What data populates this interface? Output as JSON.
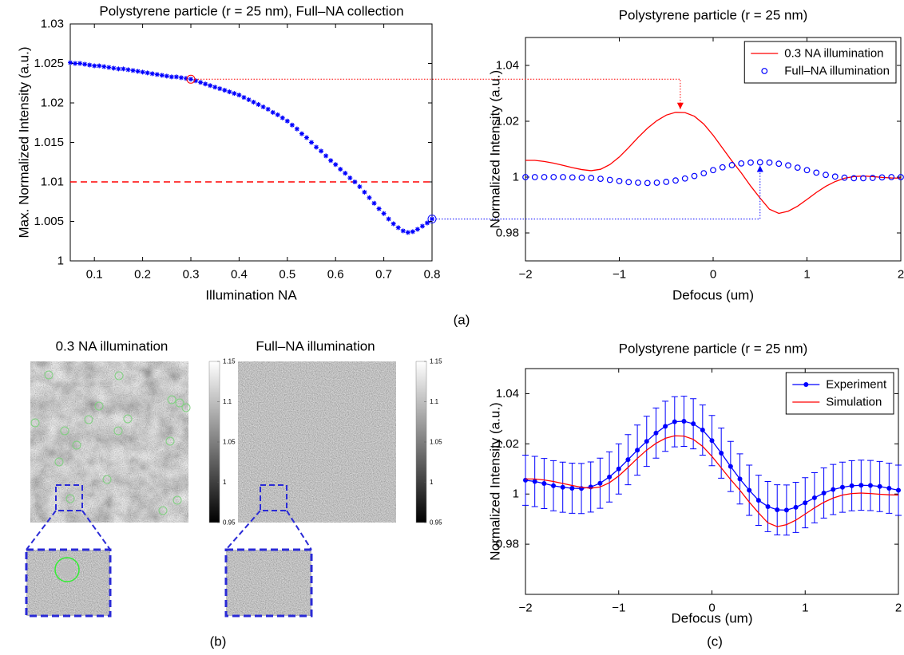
{
  "chart_data": [
    {
      "type": "scatter",
      "title": "Polystyrene particle (r = 25 nm), Full–NA collection",
      "x_label": "Illumination NA",
      "y_label": "Max. Normalized Intensity (a.u.)",
      "xlim": [
        0.05,
        0.8
      ],
      "ylim": [
        1,
        1.03
      ],
      "xticks": [
        0.1,
        0.2,
        0.3,
        0.4,
        0.5,
        0.6,
        0.7,
        0.8
      ],
      "yticks": [
        1,
        1.005,
        1.01,
        1.015,
        1.02,
        1.025,
        1.03
      ],
      "x": [
        0.05,
        0.06,
        0.07,
        0.08,
        0.09,
        0.1,
        0.11,
        0.12,
        0.13,
        0.14,
        0.15,
        0.16,
        0.17,
        0.18,
        0.19,
        0.2,
        0.21,
        0.22,
        0.23,
        0.24,
        0.25,
        0.26,
        0.27,
        0.28,
        0.29,
        0.3,
        0.31,
        0.32,
        0.33,
        0.34,
        0.35,
        0.36,
        0.37,
        0.38,
        0.39,
        0.4,
        0.41,
        0.42,
        0.43,
        0.44,
        0.45,
        0.46,
        0.47,
        0.48,
        0.49,
        0.5,
        0.51,
        0.52,
        0.53,
        0.54,
        0.55,
        0.56,
        0.57,
        0.58,
        0.59,
        0.6,
        0.61,
        0.62,
        0.63,
        0.64,
        0.65,
        0.66,
        0.67,
        0.68,
        0.69,
        0.7,
        0.71,
        0.72,
        0.73,
        0.74,
        0.75,
        0.76,
        0.77,
        0.78,
        0.79,
        0.8
      ],
      "series": [
        {
          "color": "#0000ff",
          "marker": "asterisk",
          "values": [
            1.0251,
            1.025,
            1.025,
            1.0249,
            1.0248,
            1.0247,
            1.0247,
            1.0246,
            1.0245,
            1.0244,
            1.0243,
            1.0243,
            1.0242,
            1.0241,
            1.024,
            1.0239,
            1.0238,
            1.0237,
            1.0236,
            1.0235,
            1.0234,
            1.0233,
            1.0233,
            1.0232,
            1.0231,
            1.023,
            1.0228,
            1.0226,
            1.0224,
            1.0222,
            1.022,
            1.0218,
            1.0216,
            1.0214,
            1.0212,
            1.021,
            1.0207,
            1.0204,
            1.0201,
            1.0198,
            1.0195,
            1.0192,
            1.0188,
            1.0185,
            1.0181,
            1.0177,
            1.0172,
            1.0167,
            1.0161,
            1.0156,
            1.015,
            1.0144,
            1.0139,
            1.0133,
            1.0127,
            1.0122,
            1.0116,
            1.0111,
            1.0105,
            1.01,
            1.0094,
            1.0087,
            1.008,
            1.0073,
            1.0066,
            1.006,
            1.0053,
            1.0047,
            1.0042,
            1.0038,
            1.0036,
            1.0037,
            1.004,
            1.0044,
            1.0048,
            1.0053
          ]
        }
      ],
      "reference_line": {
        "y": 1.01,
        "color": "#ff0000"
      },
      "highlights": [
        {
          "x": 0.3,
          "y": 1.023,
          "color": "#ff0000"
        },
        {
          "x": 0.8,
          "y": 1.0053,
          "color": "#0000ff"
        }
      ]
    },
    {
      "type": "line",
      "title": "Polystyrene particle (r = 25 nm)",
      "x_label": "Defocus (um)",
      "y_label": "Normalized Intensity (a.u.)",
      "xlim": [
        -2,
        2
      ],
      "ylim": [
        0.97,
        1.05
      ],
      "xticks": [
        {
          "value": -2,
          "label": "−2"
        },
        {
          "value": -1,
          "label": "−1"
        },
        0,
        1,
        2
      ],
      "yticks": [
        0.98,
        1,
        1.02,
        1.04
      ],
      "legend": "upper right",
      "x": [
        -2.0,
        -1.9,
        -1.8,
        -1.7,
        -1.6,
        -1.5,
        -1.4,
        -1.3,
        -1.2,
        -1.1,
        -1.0,
        -0.9,
        -0.8,
        -0.7,
        -0.6,
        -0.5,
        -0.4,
        -0.3,
        -0.2,
        -0.1,
        0.0,
        0.1,
        0.2,
        0.3,
        0.4,
        0.5,
        0.6,
        0.7,
        0.8,
        0.9,
        1.0,
        1.1,
        1.2,
        1.3,
        1.4,
        1.5,
        1.6,
        1.7,
        1.8,
        1.9,
        2.0
      ],
      "series": [
        {
          "name": "0.3 NA illumination",
          "color": "#ff0000",
          "marker": "line",
          "values": [
            1.006,
            1.006,
            1.0056,
            1.005,
            1.0042,
            1.0034,
            1.0027,
            1.0023,
            1.0028,
            1.0045,
            1.0072,
            1.0106,
            1.0142,
            1.0175,
            1.0202,
            1.0222,
            1.0232,
            1.0231,
            1.0218,
            1.019,
            1.015,
            1.0104,
            1.0058,
            1.0015,
            0.9968,
            0.9925,
            0.9885,
            0.987,
            0.9878,
            0.9896,
            0.992,
            0.9945,
            0.9967,
            0.9984,
            0.9996,
            1.0002,
            1.0004,
            1.0002,
            0.9999,
            0.9997,
            0.9996
          ]
        },
        {
          "name": "Full–NA illumination",
          "color": "#0000ff",
          "marker": "circle",
          "values": [
            1.0,
            1.0,
            1.0,
            1.0,
            1.0,
            0.9999,
            0.9998,
            0.9997,
            0.9994,
            0.999,
            0.9986,
            0.9982,
            0.998,
            0.9979,
            0.998,
            0.9983,
            0.9988,
            0.9995,
            1.0004,
            1.0014,
            1.0025,
            1.0035,
            1.0043,
            1.0049,
            1.0052,
            1.0053,
            1.0052,
            1.0048,
            1.0042,
            1.0034,
            1.0025,
            1.0016,
            1.0008,
            1.0002,
            0.9998,
            0.9996,
            0.9996,
            0.9997,
            0.9999,
            1.0,
            1.0
          ]
        }
      ],
      "connectors": [
        {
          "x": -0.35,
          "y": 1.0232,
          "color": "#ff0000"
        },
        {
          "x": 0.5,
          "y": 1.0053,
          "color": "#0000ff"
        }
      ]
    },
    {
      "type": "line",
      "title": "Polystyrene particle (r = 25 nm)",
      "x_label": "Defocus (um)",
      "y_label": "Normalized Intensity (a.u.)",
      "xlim": [
        -2,
        2
      ],
      "ylim": [
        0.96,
        1.05
      ],
      "xticks": [
        {
          "value": -2,
          "label": "−2"
        },
        {
          "value": -1,
          "label": "−1"
        },
        0,
        1,
        2
      ],
      "yticks": [
        0.98,
        1,
        1.02,
        1.04
      ],
      "legend": "upper right",
      "x": [
        -2.0,
        -1.9,
        -1.8,
        -1.7,
        -1.6,
        -1.5,
        -1.4,
        -1.3,
        -1.2,
        -1.1,
        -1.0,
        -0.9,
        -0.8,
        -0.7,
        -0.6,
        -0.5,
        -0.4,
        -0.3,
        -0.2,
        -0.1,
        0.0,
        0.1,
        0.2,
        0.3,
        0.4,
        0.5,
        0.6,
        0.7,
        0.8,
        0.9,
        1.0,
        1.1,
        1.2,
        1.3,
        1.4,
        1.5,
        1.6,
        1.7,
        1.8,
        1.9,
        2.0
      ],
      "series": [
        {
          "name": "Experiment",
          "color": "#0000ff",
          "marker": "dot",
          "values": [
            1.0055,
            1.005,
            1.0042,
            1.0033,
            1.0027,
            1.0023,
            1.0022,
            1.0028,
            1.0043,
            1.0068,
            1.01,
            1.0137,
            1.0175,
            1.021,
            1.0243,
            1.027,
            1.0288,
            1.029,
            1.028,
            1.0255,
            1.0213,
            1.0163,
            1.011,
            1.006,
            1.0015,
            0.9975,
            0.995,
            0.9937,
            0.9936,
            0.9947,
            0.9965,
            0.9985,
            1.0004,
            1.0018,
            1.0027,
            1.0033,
            1.0035,
            1.0034,
            1.003,
            1.0023,
            1.0015
          ],
          "errors": [
            0.01,
            0.01,
            0.01,
            0.01,
            0.01,
            0.01,
            0.01,
            0.01,
            0.01,
            0.01,
            0.01,
            0.01,
            0.01,
            0.01,
            0.01,
            0.01,
            0.01,
            0.01,
            0.01,
            0.01,
            0.01,
            0.01,
            0.01,
            0.01,
            0.01,
            0.01,
            0.01,
            0.01,
            0.01,
            0.01,
            0.01,
            0.01,
            0.01,
            0.01,
            0.01,
            0.01,
            0.01,
            0.01,
            0.01,
            0.01,
            0.01
          ]
        },
        {
          "name": "Simulation",
          "color": "#ff0000",
          "marker": "line",
          "values": [
            1.006,
            1.006,
            1.0056,
            1.005,
            1.0042,
            1.0034,
            1.0027,
            1.0023,
            1.0028,
            1.0045,
            1.0072,
            1.0106,
            1.0142,
            1.0175,
            1.0202,
            1.0222,
            1.0232,
            1.0231,
            1.0218,
            1.019,
            1.015,
            1.0104,
            1.0058,
            1.0015,
            0.9968,
            0.9925,
            0.9885,
            0.987,
            0.9878,
            0.9896,
            0.992,
            0.9945,
            0.9967,
            0.9984,
            0.9996,
            1.0002,
            1.0004,
            1.0002,
            0.9999,
            0.9997,
            0.9996
          ]
        }
      ]
    }
  ],
  "figure": {
    "panel_labels": [
      "(a)",
      "(b)",
      "(c)"
    ],
    "images": [
      {
        "title": "0.3 NA illumination"
      },
      {
        "title": "Full–NA illumination"
      }
    ],
    "colorbar": {
      "lim": [
        0.95,
        1.15
      ],
      "ticks": [
        0.95,
        1,
        1.05,
        1.1,
        1.15
      ]
    }
  }
}
